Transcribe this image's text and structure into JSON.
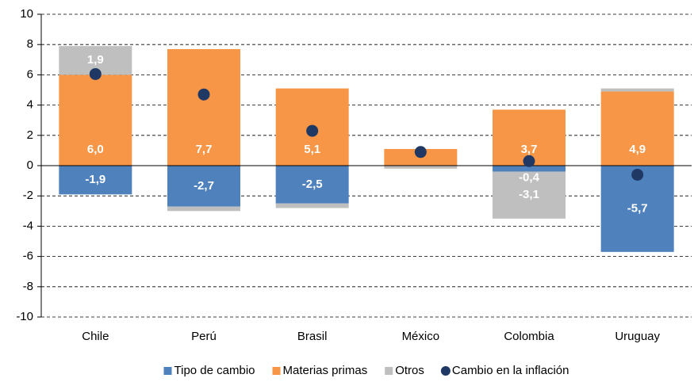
{
  "chart_data": {
    "type": "bar",
    "stacked": true,
    "categories": [
      "Chile",
      "Perú",
      "Brasil",
      "México",
      "Colombia",
      "Uruguay"
    ],
    "series": [
      {
        "name": "Tipo de cambio",
        "color": "#4f81bd",
        "values": [
          -1.9,
          -2.7,
          -2.5,
          0,
          -0.4,
          -5.7
        ],
        "value_labels": [
          "-1,9",
          "-2,7",
          "-2,5",
          null,
          "-0,4",
          "-5,7"
        ]
      },
      {
        "name": "Materias primas",
        "color": "#f79646",
        "values": [
          6.0,
          7.7,
          5.1,
          1.1,
          3.7,
          4.9
        ],
        "value_labels": [
          "6,0",
          "7,7",
          "5,1",
          null,
          "3,7",
          "4,9"
        ]
      },
      {
        "name": "Otros",
        "color": "#bfbfbf",
        "values": [
          1.9,
          -0.3,
          -0.3,
          -0.2,
          -3.1,
          0.2
        ],
        "value_labels": [
          "1,9",
          null,
          null,
          null,
          "-3,1",
          null
        ]
      },
      {
        "name": "Cambio en la inflación",
        "color": "#1f3864",
        "type": "scatter",
        "values": [
          6.05,
          4.7,
          2.3,
          0.9,
          0.3,
          -0.6
        ]
      }
    ],
    "ylim": [
      -10,
      10
    ],
    "yticks": [
      -10,
      -8,
      -6,
      -4,
      -2,
      0,
      2,
      4,
      6,
      8,
      10
    ],
    "grid": true,
    "legend": "bottom"
  }
}
